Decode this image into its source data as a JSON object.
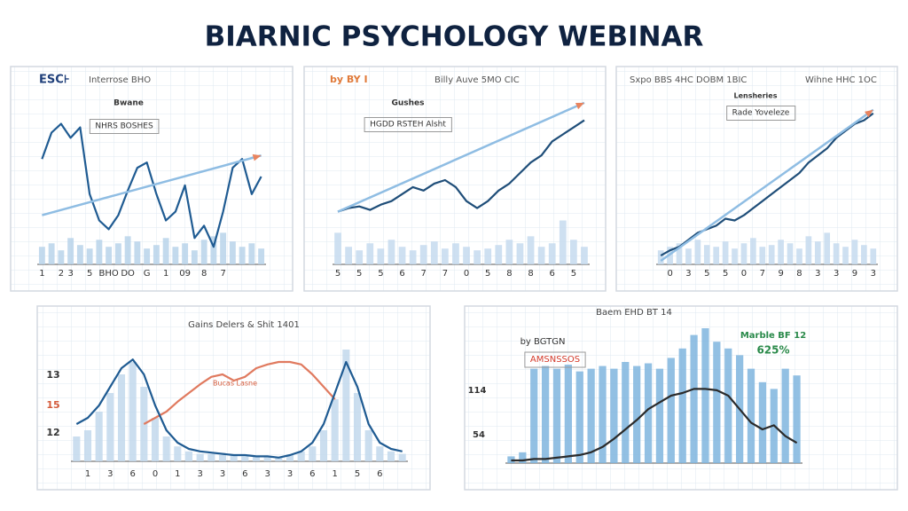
{
  "title": "BIARNIC PSYCHOLOGY WEBINAR",
  "chart_data": [
    {
      "type": "line",
      "ylim": [
        0,
        100
      ],
      "annotations": [
        "ESC⊦",
        "Interrose BHO",
        "Bwane",
        "NHRS BOSHES"
      ],
      "categories": [
        "1",
        null,
        "2",
        "3",
        null,
        "5",
        null,
        "BHO",
        null,
        "DO",
        null,
        "G",
        null,
        "1",
        null,
        "09",
        null,
        "8",
        null,
        "7",
        null,
        null,
        null,
        null
      ],
      "series": [
        {
          "type": "bar",
          "color": "#b9d3ea",
          "values": [
            10,
            12,
            8,
            15,
            11,
            9,
            14,
            10,
            12,
            16,
            13,
            9,
            11,
            15,
            10,
            12,
            8,
            14,
            16,
            18,
            13,
            10,
            12,
            9
          ]
        },
        {
          "type": "line",
          "color": "#1f5b92",
          "values": [
            60,
            75,
            80,
            72,
            78,
            40,
            25,
            20,
            28,
            42,
            55,
            58,
            40,
            25,
            30,
            45,
            15,
            22,
            10,
            30,
            55,
            60,
            40,
            50
          ]
        }
      ],
      "trend": {
        "color": "#8fbde3",
        "values": [
          28,
          62
        ]
      }
    },
    {
      "type": "line",
      "ylim": [
        0,
        100
      ],
      "annotations": [
        "by BY I",
        "Billy Auve 5MO CIC",
        "Gushes",
        "HGDD RSTEH Alsht"
      ],
      "categories": [
        "5",
        null,
        "5",
        null,
        "5",
        null,
        "6",
        null,
        "7",
        null,
        "7",
        null,
        "0",
        null,
        "5",
        null,
        "8",
        null,
        "8",
        null,
        "6",
        null,
        "5",
        null
      ],
      "series": [
        {
          "type": "bar",
          "color": "#c5dbee",
          "values": [
            18,
            10,
            8,
            12,
            9,
            14,
            10,
            8,
            11,
            13,
            9,
            12,
            10,
            8,
            9,
            11,
            14,
            12,
            16,
            10,
            12,
            25,
            14,
            10
          ]
        },
        {
          "type": "line",
          "color": "#1f4e79",
          "values": [
            30,
            32,
            33,
            31,
            34,
            36,
            40,
            44,
            42,
            46,
            48,
            44,
            36,
            32,
            36,
            42,
            46,
            52,
            58,
            62,
            70,
            74,
            78,
            82
          ]
        }
      ],
      "trend": {
        "color": "#8fbde3",
        "values": [
          30,
          92
        ]
      }
    },
    {
      "type": "line",
      "ylim": [
        0,
        100
      ],
      "annotations": [
        "Sxpo BBS 4HC DOBM 1BIC",
        "Wihne HHC 1OC",
        "Lensheries",
        "Rade Yoveleze"
      ],
      "categories": [
        null,
        "0",
        null,
        "3",
        null,
        "5",
        null,
        "5",
        null,
        "0",
        null,
        "7",
        null,
        "9",
        null,
        "8",
        null,
        "3",
        null,
        "3",
        null,
        "9",
        null,
        "3"
      ],
      "series": [
        {
          "type": "bar",
          "color": "#c5dbee",
          "values": [
            8,
            10,
            12,
            9,
            14,
            11,
            10,
            13,
            9,
            12,
            15,
            10,
            11,
            14,
            12,
            9,
            16,
            13,
            18,
            12,
            10,
            14,
            11,
            9
          ]
        },
        {
          "type": "line",
          "color": "#1f4e79",
          "values": [
            5,
            8,
            10,
            14,
            18,
            20,
            22,
            26,
            25,
            28,
            32,
            36,
            40,
            44,
            48,
            52,
            58,
            62,
            66,
            72,
            76,
            80,
            82,
            86
          ]
        }
      ],
      "trend": {
        "color": "#8fbde3",
        "values": [
          2,
          88
        ]
      }
    },
    {
      "type": "line",
      "ylim": [
        0,
        100
      ],
      "annotations": [
        "Gains Delers & Shit 1401",
        "13",
        "15",
        "12",
        "Bucas Lasne"
      ],
      "categories": [
        null,
        "1",
        null,
        "3",
        null,
        "6",
        null,
        "0",
        null,
        "1",
        null,
        "3",
        null,
        "3",
        null,
        "6",
        null,
        "3",
        null,
        "3",
        null,
        "6",
        null,
        "1",
        null,
        "5",
        null,
        "6",
        null,
        null
      ],
      "series": [
        {
          "type": "bar",
          "color": "#c2d8ec",
          "values": [
            20,
            25,
            40,
            55,
            70,
            80,
            60,
            35,
            20,
            12,
            8,
            6,
            6,
            5,
            5,
            4,
            4,
            4,
            3,
            5,
            8,
            12,
            25,
            50,
            90,
            55,
            25,
            12,
            8,
            6
          ]
        },
        {
          "type": "line",
          "color": "#e07a5f",
          "values": [
            null,
            null,
            null,
            null,
            null,
            null,
            30,
            35,
            40,
            48,
            55,
            62,
            68,
            70,
            65,
            68,
            75,
            78,
            80,
            80,
            78,
            70,
            60,
            50,
            null,
            null,
            null,
            null,
            null,
            null
          ]
        },
        {
          "type": "line",
          "color": "#1f5b92",
          "values": [
            30,
            35,
            45,
            60,
            75,
            82,
            70,
            45,
            25,
            15,
            10,
            8,
            7,
            6,
            5,
            5,
            4,
            4,
            3,
            5,
            8,
            15,
            30,
            55,
            80,
            60,
            30,
            15,
            10,
            8
          ]
        }
      ]
    },
    {
      "type": "line",
      "ylim": [
        0,
        100
      ],
      "annotations": [
        "Baem EHD BT 14",
        "by BGTGN",
        "AMSNSSOS",
        "Marble BF 12",
        "625%",
        "114",
        "54"
      ],
      "categories": [
        null,
        null,
        null,
        null,
        null,
        null,
        null,
        null,
        null,
        null,
        null,
        null,
        null,
        null,
        null,
        null,
        null,
        null,
        null,
        null,
        null,
        null,
        null,
        null,
        null,
        null
      ],
      "series": [
        {
          "type": "bar",
          "color": "#7fb5de",
          "values": [
            5,
            8,
            70,
            72,
            70,
            73,
            68,
            70,
            72,
            70,
            75,
            72,
            74,
            70,
            78,
            85,
            95,
            100,
            90,
            85,
            80,
            70,
            60,
            55,
            70,
            65
          ]
        },
        {
          "type": "line",
          "color": "#2b2b2b",
          "values": [
            2,
            2,
            3,
            3,
            4,
            5,
            6,
            8,
            12,
            18,
            25,
            32,
            40,
            45,
            50,
            52,
            55,
            55,
            54,
            50,
            40,
            30,
            25,
            28,
            20,
            15
          ]
        }
      ]
    }
  ]
}
